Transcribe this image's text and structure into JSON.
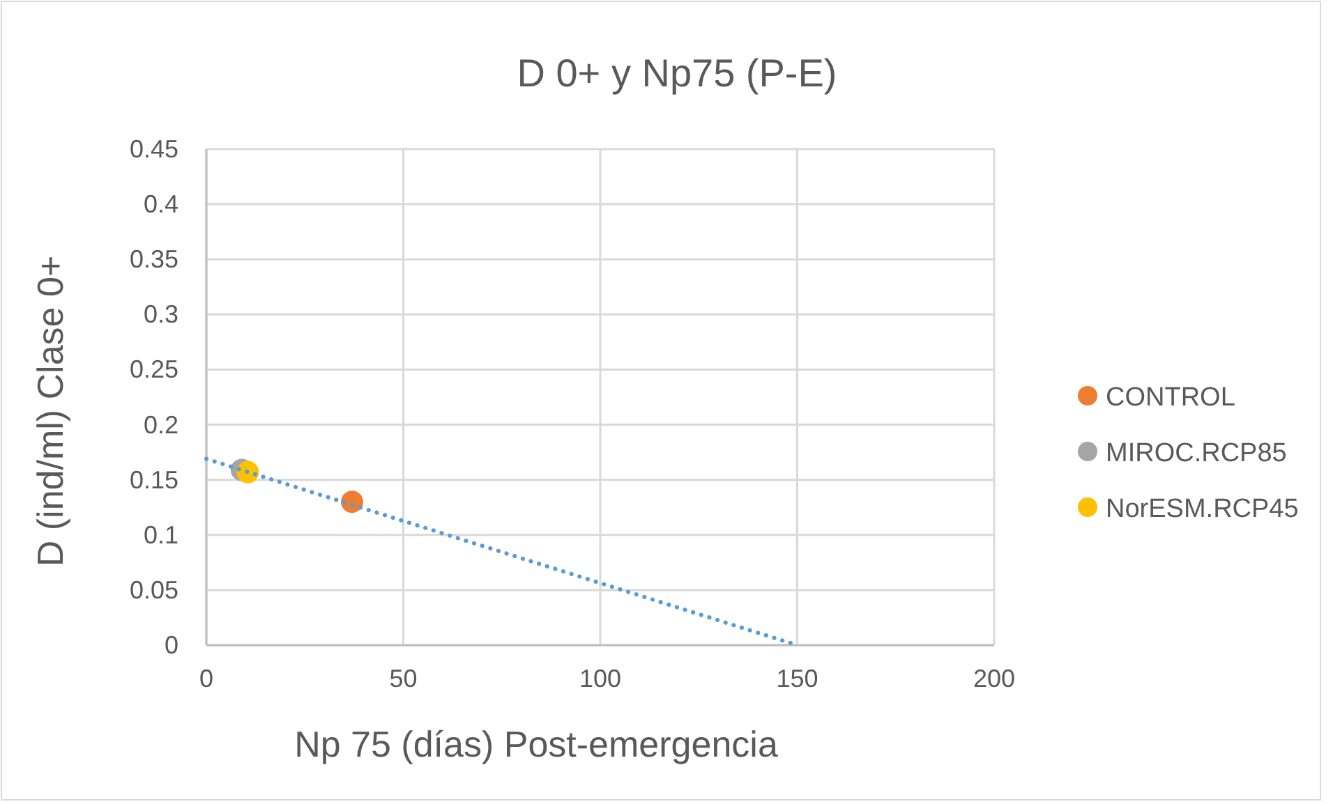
{
  "chart_data": {
    "type": "scatter",
    "title": "D 0+ y Np75 (P-E)",
    "xlabel": "Np 75 (días) Post-emergencia",
    "ylabel": "D (ind/ml) Clase 0+",
    "xlim": [
      0,
      200
    ],
    "xticks": [
      0,
      50,
      100,
      150,
      200
    ],
    "ylim": [
      0,
      0.45
    ],
    "yticks": [
      0,
      0.05,
      0.1,
      0.15,
      0.2,
      0.25,
      0.3,
      0.35,
      0.4,
      0.45
    ],
    "grid": true,
    "legend": "right",
    "series": [
      {
        "name": "CONTROL",
        "color": "#ed7d31",
        "marker": "circle",
        "x": [
          37
        ],
        "values": [
          0.13
        ]
      },
      {
        "name": "MIROC.RCP85",
        "color": "#a5a5a5",
        "marker": "circle",
        "x": [
          9
        ],
        "values": [
          0.159
        ]
      },
      {
        "name": "NorESM.RCP45",
        "color": "#ffc000",
        "marker": "circle",
        "x": [
          10.5
        ],
        "values": [
          0.157
        ]
      },
      {
        "type": "line",
        "color": "#5b9bd5",
        "line_style": "dotted",
        "marker": "none",
        "x": [
          0,
          150
        ],
        "values": [
          0.169,
          0
        ]
      }
    ]
  }
}
